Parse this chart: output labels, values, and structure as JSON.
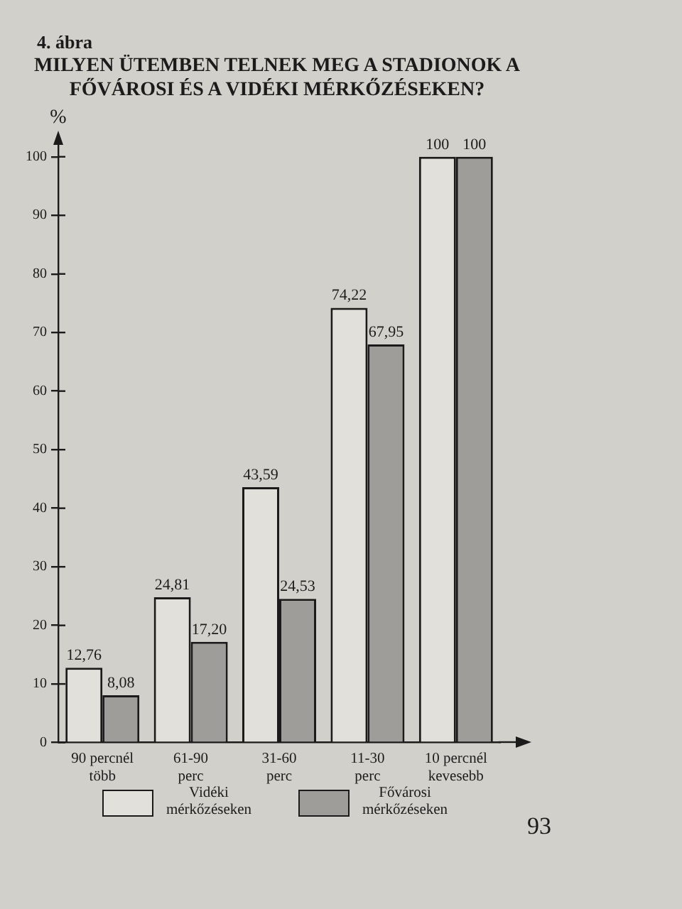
{
  "chart_data": {
    "type": "bar",
    "title": "MILYEN ÜTEMBEN TELNEK MEG A STADIONOK A\nFŐVÁROSI ÉS A VIDÉKI MÉRKŐZÉSEKEN?",
    "ylabel": "%",
    "categories": [
      "90 percnél\ntöbb",
      "61-90\nperc",
      "31-60\nperc",
      "11-30\nperc",
      "10 percnél\nkevesebb"
    ],
    "series": [
      {
        "name": "Vidéki\nmérkőzéseken",
        "color": "#e2e0da",
        "values": [
          12.76,
          24.81,
          43.59,
          74.22,
          100
        ],
        "value_labels": [
          "12,76",
          "24,81",
          "43,59",
          "74,22",
          "100"
        ]
      },
      {
        "name": "Fővárosi\nmérkőzéseken",
        "color": "#9e9d99",
        "values": [
          8.08,
          17.2,
          24.53,
          67.95,
          100
        ],
        "value_labels": [
          "8,08",
          "17,20",
          "24,53",
          "67,95",
          "100"
        ]
      }
    ],
    "ylim": [
      0,
      103
    ],
    "yticks": [
      0,
      10,
      20,
      30,
      40,
      50,
      60,
      70,
      80,
      90,
      100
    ],
    "grid": false,
    "legend": "bottom",
    "annotations": [
      "4. ábra",
      "93"
    ]
  }
}
